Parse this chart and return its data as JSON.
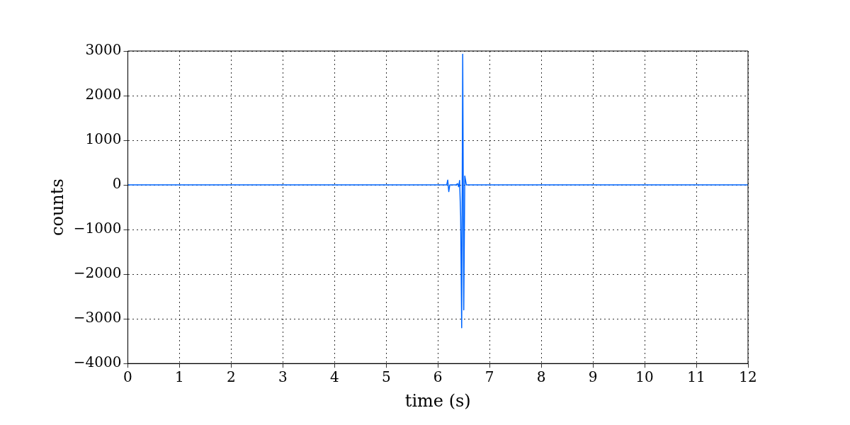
{
  "chart_data": {
    "type": "line",
    "xlabel": "time (s)",
    "ylabel": "counts",
    "x": [
      0,
      6.17,
      6.19,
      6.21,
      6.23,
      6.35,
      6.38,
      6.4,
      6.42,
      6.44,
      6.46,
      6.48,
      6.5,
      6.52,
      6.55,
      12
    ],
    "series": [
      {
        "color": "#0066ff",
        "values": [
          0,
          0,
          110,
          -150,
          0,
          0,
          30,
          -40,
          100,
          -700,
          -3200,
          2930,
          -2800,
          200,
          0,
          0
        ]
      }
    ],
    "xlim": [
      0,
      12
    ],
    "xticks": [
      0,
      1,
      2,
      3,
      4,
      5,
      6,
      7,
      8,
      9,
      10,
      11,
      12
    ],
    "ylim": [
      -4000,
      3000
    ],
    "yticks": [
      {
        "value": -4000,
        "label": "−4000"
      },
      {
        "value": -3000,
        "label": "−3000"
      },
      {
        "value": -2000,
        "label": "−2000"
      },
      {
        "value": -1000,
        "label": "−1000"
      },
      0,
      1000,
      2000,
      3000
    ],
    "grid": true,
    "legend": false,
    "marker": "none",
    "line_style": "solid"
  }
}
